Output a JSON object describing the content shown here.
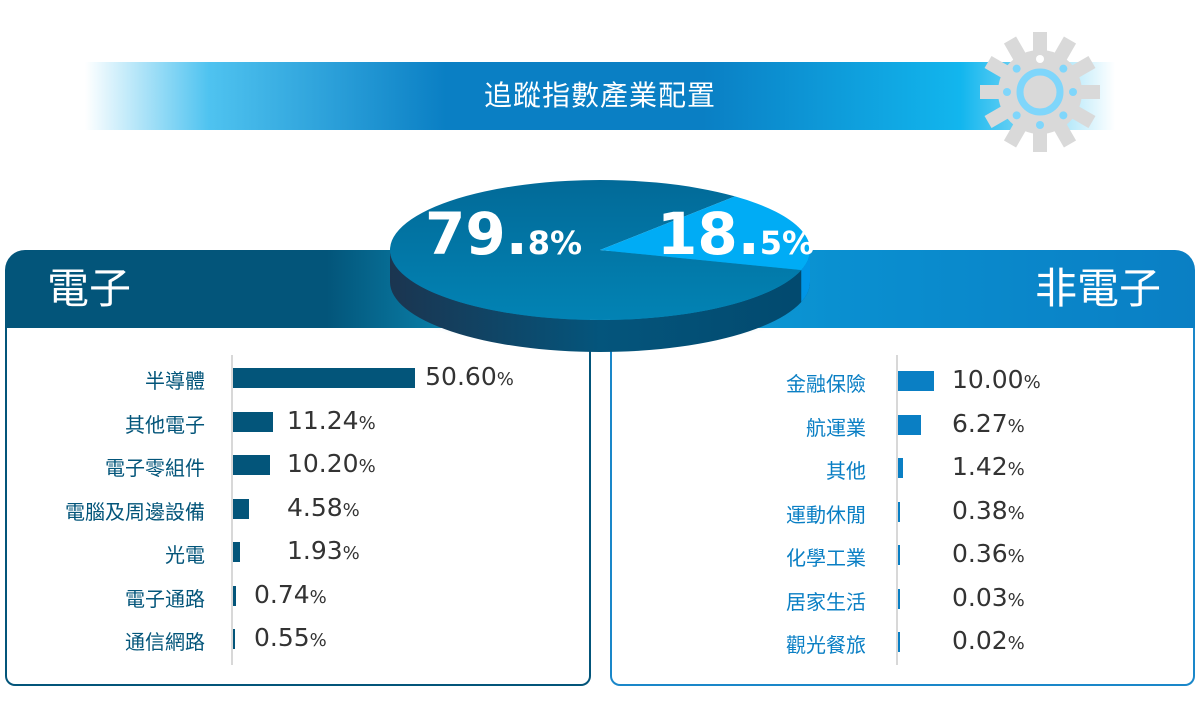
{
  "title": "追蹤指數產業配置",
  "colors": {
    "electronics": "#03557a",
    "non_electronics": "#0a7fc4",
    "pie_dark": "#02709f",
    "pie_light": "#00acf5"
  },
  "chart_data": [
    {
      "type": "pie",
      "slices": [
        {
          "label": "電子",
          "value": 79.8,
          "display_int": "79.",
          "display_dec": "8%"
        },
        {
          "label": "非電子",
          "value": 18.5,
          "display_int": "18.",
          "display_dec": "5%"
        }
      ]
    },
    {
      "type": "bar",
      "orientation": "horizontal",
      "title": "電子",
      "categories": [
        "半導體",
        "其他電子",
        "電子零組件",
        "電腦及周邊設備",
        "光電",
        "電子通路",
        "通信網路"
      ],
      "values": [
        50.6,
        11.24,
        10.2,
        4.58,
        1.93,
        0.74,
        0.55
      ],
      "labels": [
        "50.60",
        "11.24",
        "10.20",
        "4.58",
        "1.93",
        "0.74",
        "0.55"
      ],
      "unit": "%"
    },
    {
      "type": "bar",
      "orientation": "horizontal",
      "title": "非電子",
      "categories": [
        "金融保險",
        "航運業",
        "其他",
        "運動休閒",
        "化學工業",
        "居家生活",
        "觀光餐旅"
      ],
      "values": [
        10.0,
        6.27,
        1.42,
        0.38,
        0.36,
        0.03,
        0.02
      ],
      "labels": [
        "10.00",
        "6.27",
        "1.42",
        "0.38",
        "0.36",
        "0.03",
        "0.02"
      ],
      "unit": "%"
    }
  ]
}
